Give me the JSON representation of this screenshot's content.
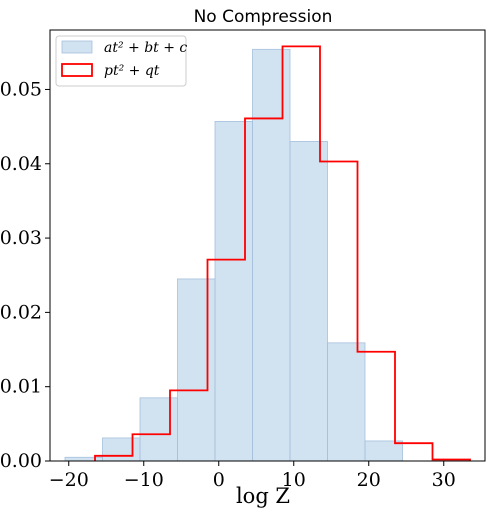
{
  "chart_data": {
    "type": "bar",
    "title": "No Compression",
    "xlabel": "log Z",
    "ylabel": "",
    "xlim": [
      -22.5,
      35.5
    ],
    "ylim": [
      0,
      0.058
    ],
    "xticks": [
      -20,
      -10,
      0,
      10,
      20,
      30
    ],
    "xtick_labels": [
      "−20",
      "−10",
      "0",
      "10",
      "20",
      "30"
    ],
    "yticks": [
      0.0,
      0.01,
      0.02,
      0.03,
      0.04,
      0.05
    ],
    "ytick_labels": [
      "0.00",
      "0.01",
      "0.02",
      "0.03",
      "0.04",
      "0.05"
    ],
    "grid": false,
    "legend_position": "top-left",
    "series": [
      {
        "name": "at² + bt + c",
        "style": "filled-histogram",
        "color": "#b9d2e8",
        "edge_color": "#a6c0de",
        "bin_edges": [
          -20.5,
          -15.5,
          -10.5,
          -5.5,
          -0.5,
          4.5,
          9.5,
          14.5,
          19.5,
          24.5
        ],
        "values": [
          0.0005,
          0.0031,
          0.0085,
          0.0245,
          0.0457,
          0.0554,
          0.043,
          0.0159,
          0.0027
        ]
      },
      {
        "name": "pt² + qt",
        "style": "step-histogram",
        "color": "#ff0000",
        "bin_edges": [
          -16.5,
          -11.5,
          -6.5,
          -1.5,
          3.5,
          8.5,
          13.5,
          18.5,
          23.5,
          28.5,
          33.5
        ],
        "values": [
          0.0007,
          0.0036,
          0.0095,
          0.0271,
          0.0461,
          0.0558,
          0.0403,
          0.0147,
          0.0024,
          0.0002
        ]
      }
    ]
  }
}
